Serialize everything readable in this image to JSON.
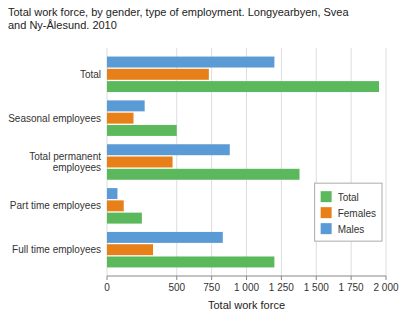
{
  "chart_data": {
    "type": "bar",
    "orientation": "horizontal",
    "title": "Total work force, by gender, type of employment. Longyearbyen, Svea\nand Ny-Ålesund. 2010",
    "categories": [
      "Full time employees",
      "Part time employees",
      "Total permanent\nemployees",
      "Seasonal employees",
      "Total"
    ],
    "series": [
      {
        "name": "Males",
        "color": "#5b9bd5",
        "values": [
          830,
          75,
          880,
          270,
          1200
        ]
      },
      {
        "name": "Females",
        "color": "#e8801a",
        "values": [
          330,
          120,
          470,
          190,
          730
        ]
      },
      {
        "name": "Total",
        "color": "#5cb85c",
        "values": [
          1200,
          250,
          1380,
          500,
          1950
        ]
      }
    ],
    "x_label": "Total work force",
    "xlim": [
      0,
      2000
    ],
    "xticks": [
      0,
      500,
      750,
      {
        "value": 1000,
        "label": "1 000"
      },
      {
        "value": 1250,
        "label": "1 250"
      },
      {
        "value": 1500,
        "label": "1 500"
      },
      {
        "value": 1750,
        "label": "1 750"
      },
      {
        "value": 2000,
        "label": "2 000"
      }
    ],
    "grid": true,
    "legend": "right"
  }
}
